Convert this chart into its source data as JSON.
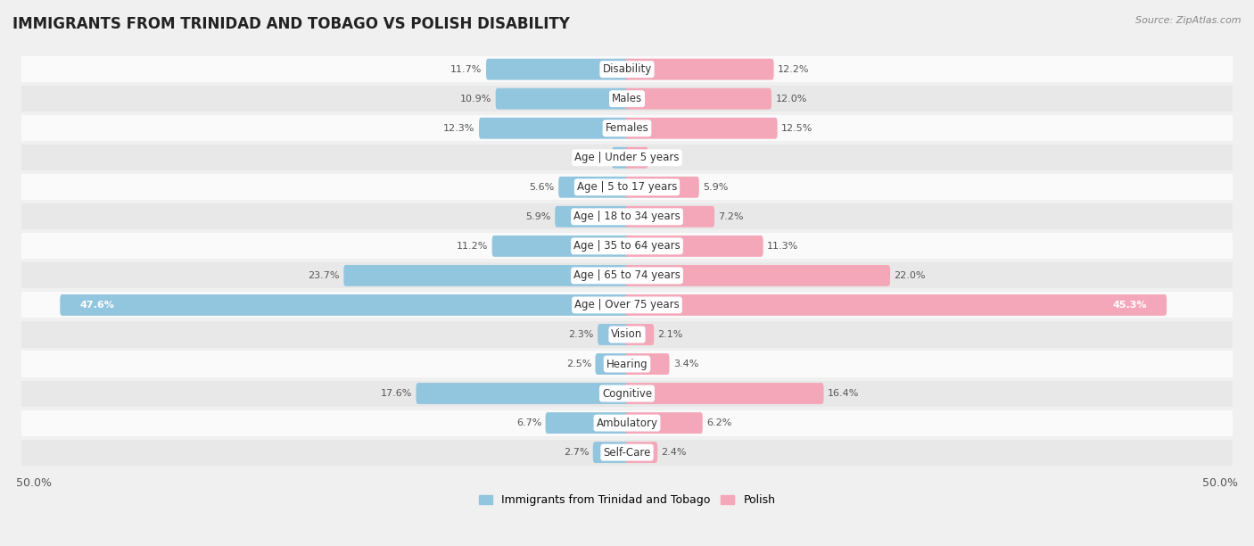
{
  "title": "IMMIGRANTS FROM TRINIDAD AND TOBAGO VS POLISH DISABILITY",
  "source": "Source: ZipAtlas.com",
  "categories": [
    "Disability",
    "Males",
    "Females",
    "Age | Under 5 years",
    "Age | 5 to 17 years",
    "Age | 18 to 34 years",
    "Age | 35 to 64 years",
    "Age | 65 to 74 years",
    "Age | Over 75 years",
    "Vision",
    "Hearing",
    "Cognitive",
    "Ambulatory",
    "Self-Care"
  ],
  "left_values": [
    11.7,
    10.9,
    12.3,
    1.1,
    5.6,
    5.9,
    11.2,
    23.7,
    47.6,
    2.3,
    2.5,
    17.6,
    6.7,
    2.7
  ],
  "right_values": [
    12.2,
    12.0,
    12.5,
    1.6,
    5.9,
    7.2,
    11.3,
    22.0,
    45.3,
    2.1,
    3.4,
    16.4,
    6.2,
    2.4
  ],
  "left_color": "#92C5DE",
  "right_color": "#F4A7B9",
  "left_label": "Immigrants from Trinidad and Tobago",
  "right_label": "Polish",
  "max_val": 50.0,
  "background_color": "#f0f0f0",
  "row_bg_light": "#fafafa",
  "row_bg_dark": "#e8e8e8",
  "title_fontsize": 12,
  "label_fontsize": 8.5,
  "value_fontsize": 8
}
